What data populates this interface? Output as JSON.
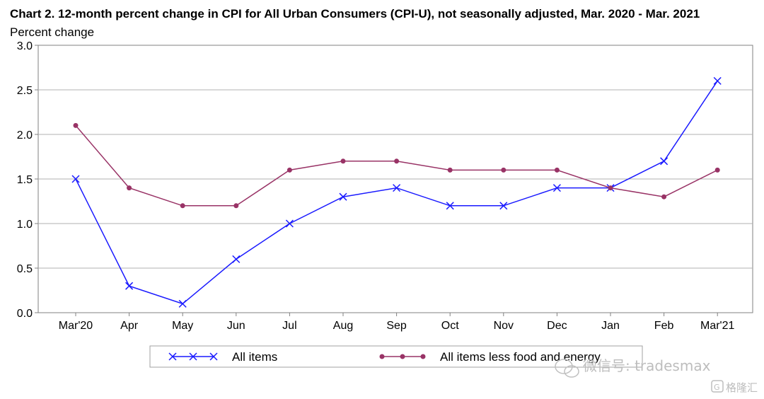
{
  "chart_data": {
    "type": "line",
    "title": "Chart 2. 12-month percent change in CPI for All Urban Consumers (CPI-U), not seasonally adjusted, Mar. 2020 - Mar. 2021",
    "ylabel": "Percent change",
    "categories": [
      "Mar'20",
      "Apr",
      "May",
      "Jun",
      "Jul",
      "Aug",
      "Sep",
      "Oct",
      "Nov",
      "Dec",
      "Jan",
      "Feb",
      "Mar'21"
    ],
    "ylim": [
      0,
      3.0
    ],
    "yticks": [
      "0.0",
      "0.5",
      "1.0",
      "1.5",
      "2.0",
      "2.5",
      "3.0"
    ],
    "grid": true,
    "legend_position": "bottom",
    "series": [
      {
        "name": "All items",
        "marker": "x",
        "color": "#1a1aff",
        "values": [
          1.5,
          0.3,
          0.1,
          0.6,
          1.0,
          1.3,
          1.4,
          1.2,
          1.2,
          1.4,
          1.4,
          1.7,
          2.6
        ]
      },
      {
        "name": "All items less food and energy",
        "marker": "circle",
        "color": "#993366",
        "values": [
          2.1,
          1.4,
          1.2,
          1.2,
          1.6,
          1.7,
          1.7,
          1.6,
          1.6,
          1.6,
          1.4,
          1.3,
          1.6
        ]
      }
    ]
  },
  "watermark": {
    "text": "微信号: tradesmax",
    "corner_text": "格隆汇"
  }
}
